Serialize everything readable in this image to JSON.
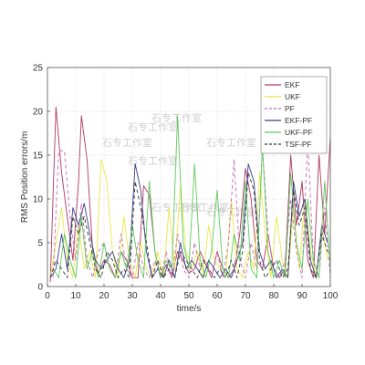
{
  "chart_data": {
    "type": "line",
    "title": "",
    "xlabel": "time/s",
    "ylabel": "RMS Position errors/m",
    "xlim": [
      0,
      100
    ],
    "ylim": [
      0,
      25
    ],
    "xticks": [
      0,
      10,
      20,
      30,
      40,
      50,
      60,
      70,
      80,
      90,
      100
    ],
    "yticks": [
      0,
      5,
      10,
      15,
      20,
      25
    ],
    "grid": true,
    "legend_position": "top-right",
    "watermark": "石专工作室",
    "series": [
      {
        "name": "EKF",
        "color": "#b0385f",
        "dash": "",
        "x": [
          1,
          3,
          5,
          7,
          9,
          11,
          12,
          14,
          16,
          18,
          20,
          22,
          24,
          26,
          28,
          30,
          32,
          34,
          36,
          38,
          40,
          42,
          44,
          46,
          48,
          50,
          52,
          54,
          56,
          58,
          60,
          62,
          64,
          66,
          68,
          70,
          72,
          74,
          76,
          78,
          80,
          82,
          84,
          86,
          88,
          90,
          92,
          94,
          96,
          98,
          100
        ],
        "y": [
          0.5,
          20.5,
          13,
          8,
          3,
          12,
          19.5,
          14.5,
          4,
          1.5,
          3,
          2.5,
          1,
          4,
          3,
          1,
          1,
          11.5,
          10.5,
          4,
          1,
          2.5,
          1,
          4,
          3,
          1.5,
          2,
          4,
          2.5,
          1,
          4,
          2,
          1,
          2,
          6,
          13.5,
          10,
          3,
          2,
          6,
          2,
          1,
          2,
          15,
          7,
          12,
          3,
          1,
          15,
          6,
          17
        ]
      },
      {
        "name": "UKF",
        "color": "#e8e84a",
        "dash": "",
        "x": [
          1,
          3,
          5,
          7,
          9,
          11,
          13,
          15,
          17,
          19,
          21,
          23,
          25,
          27,
          29,
          31,
          33,
          35,
          37,
          39,
          41,
          43,
          45,
          47,
          49,
          51,
          53,
          55,
          57,
          59,
          61,
          63,
          65,
          67,
          69,
          71,
          73,
          75,
          77,
          79,
          81,
          83,
          85,
          87,
          89,
          91,
          93,
          95,
          97,
          99
        ],
        "y": [
          1,
          5,
          9,
          3,
          1,
          7,
          2,
          4,
          1,
          14.5,
          12,
          4,
          1,
          8,
          3,
          1,
          5,
          2,
          1,
          4,
          1,
          9,
          2,
          11.5,
          4,
          2,
          4,
          1,
          7,
          3,
          2,
          1,
          10,
          2,
          1,
          4,
          2,
          13,
          6,
          1,
          8,
          3,
          1,
          9,
          2,
          10,
          4,
          1,
          7,
          3
        ]
      },
      {
        "name": "PF",
        "color": "#c966b0",
        "dash": "4,3",
        "x": [
          2,
          4,
          6,
          8,
          10,
          12,
          14,
          16,
          18,
          20,
          22,
          24,
          26,
          28,
          30,
          32,
          34,
          36,
          38,
          40,
          42,
          44,
          46,
          48,
          50,
          52,
          54,
          56,
          58,
          60,
          62,
          64,
          66,
          68,
          70,
          72,
          74,
          76,
          78,
          80,
          82,
          84,
          86,
          88,
          90,
          92,
          94,
          96,
          98,
          100
        ],
        "y": [
          1,
          15.5,
          15.5,
          8,
          3,
          9.5,
          3,
          1,
          4,
          5,
          2,
          1,
          6,
          2,
          1,
          5,
          2,
          1,
          3,
          1,
          4,
          1,
          6,
          2,
          1,
          5,
          2,
          3,
          1,
          4,
          1,
          5,
          14.5,
          3,
          1,
          5,
          2,
          16,
          6,
          2,
          1,
          3,
          10,
          4,
          1,
          17,
          3,
          1,
          9,
          1
        ]
      },
      {
        "name": "EKF-PF",
        "color": "#3a3f8c",
        "dash": "",
        "x": [
          1,
          3,
          5,
          7,
          9,
          11,
          13,
          15,
          17,
          19,
          21,
          23,
          25,
          27,
          29,
          31,
          33,
          35,
          37,
          39,
          41,
          43,
          45,
          47,
          49,
          51,
          53,
          55,
          57,
          59,
          61,
          63,
          65,
          67,
          69,
          71,
          73,
          75,
          77,
          79,
          81,
          83,
          85,
          87,
          89,
          91,
          93,
          95,
          97,
          99
        ],
        "y": [
          1,
          2,
          6,
          2,
          9,
          7,
          9.5,
          6,
          3,
          2,
          3,
          4,
          2,
          1,
          3,
          14,
          11,
          4,
          1,
          2,
          1,
          3,
          1,
          5,
          2,
          3,
          2,
          1,
          3,
          2,
          1,
          2,
          1,
          3,
          5,
          14,
          12,
          4,
          2,
          3,
          1,
          2,
          1,
          12,
          8,
          10,
          3,
          1,
          7,
          5
        ]
      },
      {
        "name": "UKF-PF",
        "color": "#5ec95e",
        "dash": "",
        "x": [
          2,
          4,
          6,
          8,
          10,
          12,
          14,
          16,
          18,
          20,
          22,
          24,
          26,
          28,
          30,
          32,
          34,
          36,
          38,
          40,
          42,
          44,
          46,
          48,
          50,
          52,
          54,
          56,
          58,
          60,
          62,
          64,
          66,
          68,
          70,
          72,
          74,
          76,
          78,
          80,
          82,
          84,
          86,
          88,
          90,
          92,
          94,
          96,
          98,
          100
        ],
        "y": [
          2,
          1,
          6,
          3,
          1,
          8,
          2,
          4,
          1,
          5,
          2,
          1,
          4,
          2,
          7,
          3,
          1,
          12,
          4,
          1,
          3,
          2,
          19.5,
          5,
          2,
          14,
          3,
          1,
          4,
          11,
          2,
          1,
          6,
          3,
          12,
          2,
          1,
          16,
          4,
          1,
          3,
          1,
          13,
          5,
          2,
          10,
          3,
          1,
          12,
          2
        ]
      },
      {
        "name": "TSF-PF",
        "color": "#333333",
        "dash": "4,3",
        "x": [
          1,
          3,
          5,
          7,
          9,
          11,
          13,
          15,
          17,
          19,
          21,
          23,
          25,
          27,
          29,
          31,
          33,
          35,
          37,
          39,
          41,
          43,
          45,
          47,
          49,
          51,
          53,
          55,
          57,
          59,
          61,
          63,
          65,
          67,
          69,
          71,
          73,
          75,
          77,
          79,
          81,
          83,
          85,
          87,
          89,
          91,
          93,
          95,
          97,
          99
        ],
        "y": [
          1,
          3,
          2,
          1,
          8,
          6,
          8,
          5,
          2,
          1,
          4,
          3,
          1,
          2,
          1,
          12,
          9,
          5,
          1,
          3,
          1,
          2,
          1,
          4,
          3,
          2,
          1,
          3,
          2,
          1,
          2,
          1,
          3,
          1,
          4,
          13,
          11,
          3,
          1,
          2,
          3,
          1,
          2,
          11,
          7,
          9,
          2,
          1,
          6,
          4
        ]
      }
    ]
  }
}
